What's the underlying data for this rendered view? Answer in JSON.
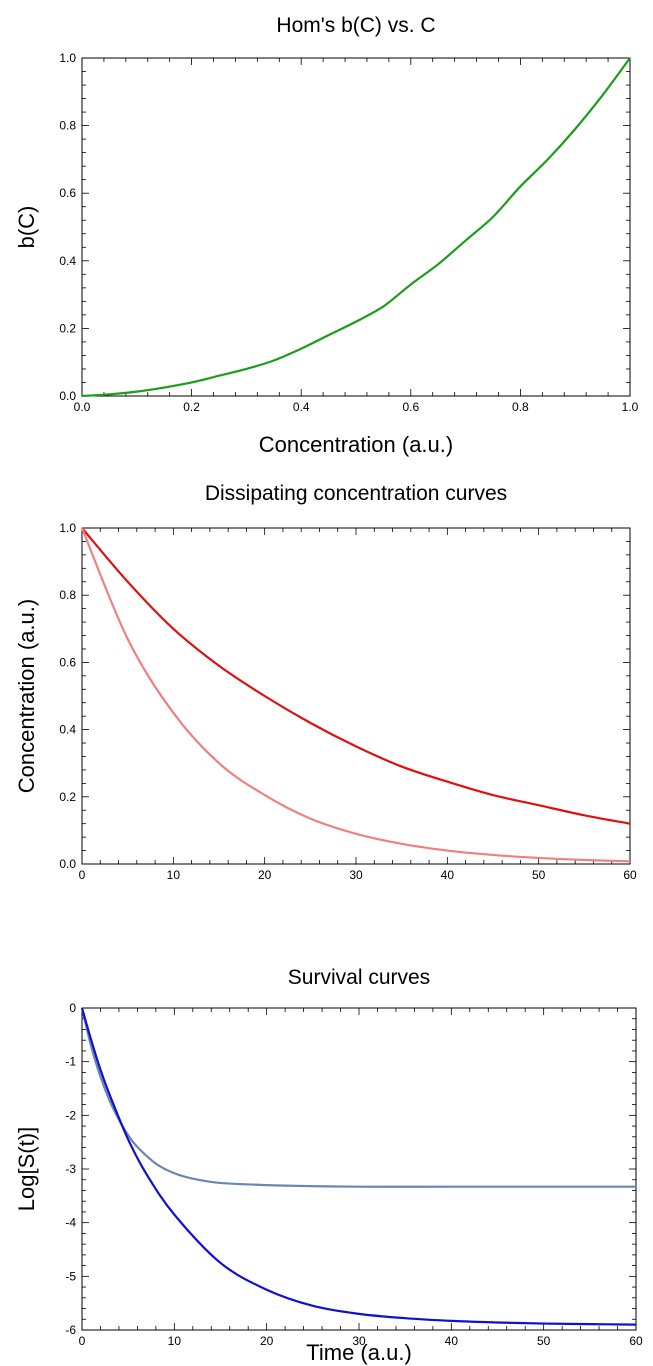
{
  "chart_data": [
    {
      "type": "line",
      "title": "Hom's b(C) vs. C",
      "xlabel": "Concentration (a.u.)",
      "ylabel": "b(C)",
      "xlim": [
        0,
        1
      ],
      "ylim": [
        0,
        1
      ],
      "xticks": [
        "0.0",
        "0.2",
        "0.4",
        "0.6",
        "0.8",
        "1.0"
      ],
      "yticks": [
        "0.0",
        "0.2",
        "0.4",
        "0.6",
        "0.8",
        "1.0"
      ],
      "series": [
        {
          "color": "#1a9e1a",
          "x": [
            0,
            0.05,
            0.1,
            0.15,
            0.2,
            0.25,
            0.3,
            0.35,
            0.4,
            0.45,
            0.5,
            0.55,
            0.6,
            0.65,
            0.7,
            0.75,
            0.8,
            0.85,
            0.9,
            0.95,
            1.0
          ],
          "y": [
            0,
            0.005,
            0.013,
            0.025,
            0.04,
            0.06,
            0.08,
            0.105,
            0.14,
            0.18,
            0.22,
            0.265,
            0.33,
            0.39,
            0.46,
            0.53,
            0.62,
            0.7,
            0.79,
            0.89,
            1.0
          ]
        }
      ]
    },
    {
      "type": "line",
      "title": "Dissipating concentration curves",
      "xlabel": "",
      "ylabel": "Concentration (a.u.)",
      "xlim": [
        0,
        60
      ],
      "ylim": [
        0,
        1
      ],
      "xticks": [
        "0",
        "10",
        "20",
        "30",
        "40",
        "50",
        "60"
      ],
      "yticks": [
        "0.0",
        "0.2",
        "0.4",
        "0.6",
        "0.8",
        "1.0"
      ],
      "series": [
        {
          "color": "#e01010",
          "x": [
            0,
            5,
            10,
            15,
            20,
            25,
            30,
            35,
            40,
            45,
            50,
            55,
            60
          ],
          "y": [
            1.0,
            0.84,
            0.7,
            0.59,
            0.5,
            0.42,
            0.35,
            0.29,
            0.245,
            0.205,
            0.175,
            0.145,
            0.12
          ]
        },
        {
          "color": "#f08080",
          "x": [
            0,
            5,
            10,
            15,
            20,
            25,
            30,
            35,
            40,
            45,
            50,
            55,
            60
          ],
          "y": [
            1.0,
            0.67,
            0.45,
            0.3,
            0.205,
            0.135,
            0.09,
            0.06,
            0.04,
            0.027,
            0.018,
            0.012,
            0.008
          ]
        }
      ]
    },
    {
      "type": "line",
      "title": "Survival curves",
      "xlabel": "Time (a.u.)",
      "ylabel": "Log[S(t)]",
      "xlim": [
        0,
        60
      ],
      "ylim": [
        -6,
        0
      ],
      "xticks": [
        "0",
        "10",
        "20",
        "30",
        "40",
        "50",
        "60"
      ],
      "yticks": [
        "0",
        "-1",
        "-2",
        "-3",
        "-4",
        "-5",
        "-6"
      ],
      "series": [
        {
          "color": "#6a86b2",
          "x": [
            0,
            1,
            2,
            3,
            4,
            5,
            6,
            8,
            10,
            12,
            15,
            20,
            25,
            30,
            40,
            50,
            60
          ],
          "y": [
            0,
            -0.72,
            -1.28,
            -1.73,
            -2.08,
            -2.37,
            -2.59,
            -2.9,
            -3.08,
            -3.18,
            -3.26,
            -3.3,
            -3.32,
            -3.33,
            -3.33,
            -3.33,
            -3.33
          ]
        },
        {
          "color": "#1010d0",
          "x": [
            0,
            1,
            2,
            3,
            5,
            7,
            10,
            15,
            20,
            25,
            30,
            35,
            40,
            45,
            50,
            55,
            60
          ],
          "y": [
            0,
            -0.6,
            -1.15,
            -1.62,
            -2.45,
            -3.1,
            -3.85,
            -4.75,
            -5.25,
            -5.55,
            -5.7,
            -5.78,
            -5.83,
            -5.86,
            -5.88,
            -5.89,
            -5.9
          ]
        }
      ]
    }
  ]
}
